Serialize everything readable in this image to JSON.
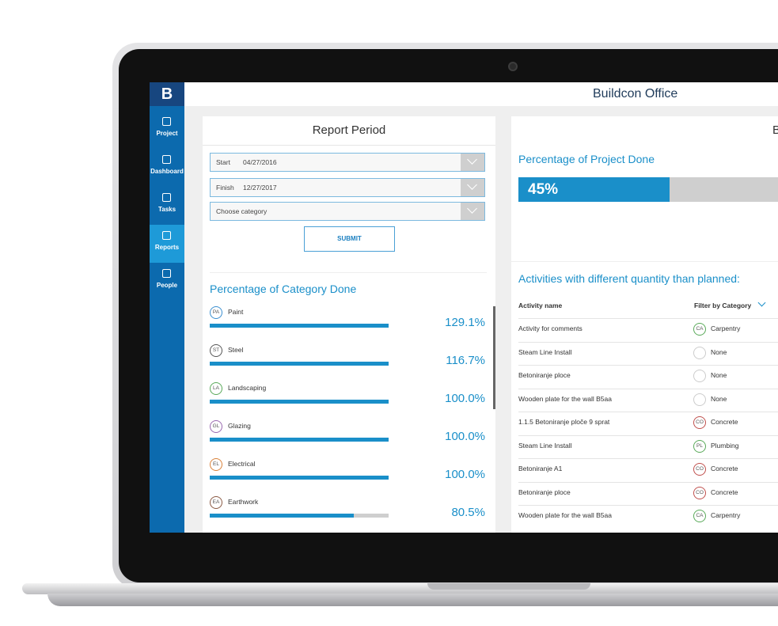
{
  "app": {
    "logo": "B",
    "title": "Buildcon Office"
  },
  "sidebar": {
    "items": [
      {
        "label": "Project"
      },
      {
        "label": "Dashboard"
      },
      {
        "label": "Tasks"
      },
      {
        "label": "Reports",
        "active": true
      },
      {
        "label": "People"
      }
    ]
  },
  "report_period": {
    "title": "Report Period",
    "fields": [
      {
        "label": "Start",
        "value": "04/27/2016"
      },
      {
        "label": "Finish",
        "value": "12/27/2017"
      },
      {
        "label": "Choose category"
      }
    ],
    "submit": "SUBMIT"
  },
  "category_done": {
    "title": "Percentage of Category Done",
    "items": [
      {
        "badge": "PA",
        "name": "Paint",
        "value": 129.1,
        "label": "129.1%",
        "color": "#3b8fd0"
      },
      {
        "badge": "ST",
        "name": "Steel",
        "value": 116.7,
        "label": "116.7%",
        "color": "#555555"
      },
      {
        "badge": "LA",
        "name": "Landscaping",
        "value": 100.0,
        "label": "100.0%",
        "color": "#5aaa5a"
      },
      {
        "badge": "GL",
        "name": "Glazing",
        "value": 100.0,
        "label": "100.0%",
        "color": "#9a6ab0"
      },
      {
        "badge": "EL",
        "name": "Electrical",
        "value": 100.0,
        "label": "100.0%",
        "color": "#d9823b"
      },
      {
        "badge": "EA",
        "name": "Earthwork",
        "value": 80.5,
        "label": "80.5%",
        "color": "#8a5a44"
      }
    ]
  },
  "right_panel": {
    "title": "B"
  },
  "project_done": {
    "title": "Percentage of Project Done",
    "value": 45,
    "label": "45%"
  },
  "activities": {
    "title": "Activities with different quantity than planned:",
    "columns": [
      "Activity name",
      "Filter by Category"
    ],
    "rows": [
      {
        "name": "Activity for comments",
        "badge": "CA",
        "category": "Carpentry",
        "color": "#5aaa5a"
      },
      {
        "name": "Steam Line Install",
        "category": "None"
      },
      {
        "name": "Betoniranje ploce",
        "category": "None"
      },
      {
        "name": "Wooden plate for the wall B5aa",
        "category": "None"
      },
      {
        "name": "1.1.5 Betoniranje ploče 9 sprat",
        "badge": "CO",
        "category": "Concrete",
        "color": "#c0504d"
      },
      {
        "name": "Steam Line Install",
        "badge": "PL",
        "category": "Plumbing",
        "color": "#5aaa5a"
      },
      {
        "name": "Betoniranje A1",
        "badge": "CO",
        "category": "Concrete",
        "color": "#c0504d"
      },
      {
        "name": "Betoniranje ploce",
        "badge": "CO",
        "category": "Concrete",
        "color": "#c0504d"
      },
      {
        "name": "Wooden plate for the wall B5aa",
        "badge": "CA",
        "category": "Carpentry",
        "color": "#5aaa5a"
      }
    ]
  }
}
